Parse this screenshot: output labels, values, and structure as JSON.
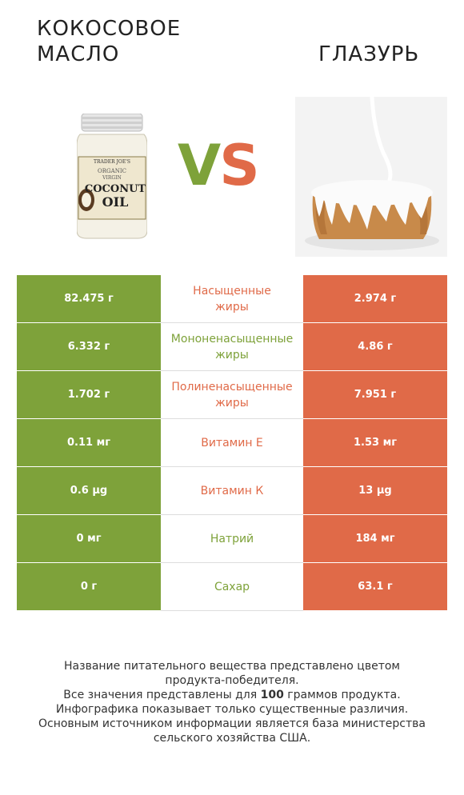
{
  "header": {
    "left_title": "КОКОСОВОЕ\nМАСЛО",
    "right_title": "ГЛАЗУРЬ",
    "vs_v": "V",
    "vs_s": "S"
  },
  "jar_label": {
    "brand": "TRADER JOE'S",
    "line1": "ORGANIC",
    "line2": "VIRGIN",
    "line3": "COCONUT",
    "line4": "OIL"
  },
  "colors": {
    "left_accent": "#7ea23a",
    "right_accent": "#e06a48"
  },
  "rows": [
    {
      "left": "82.475 г",
      "label": "Насыщенные\nжиры",
      "right": "2.974 г",
      "winner": "red"
    },
    {
      "left": "6.332 г",
      "label": "Мононенасыщенные\nжиры",
      "right": "4.86 г",
      "winner": "green"
    },
    {
      "left": "1.702 г",
      "label": "Полиненасыщенные\nжиры",
      "right": "7.951 г",
      "winner": "red"
    },
    {
      "left": "0.11 мг",
      "label": "Витамин E",
      "right": "1.53 мг",
      "winner": "red"
    },
    {
      "left": "0.6 µg",
      "label": "Витамин К",
      "right": "13 µg",
      "winner": "red"
    },
    {
      "left": "0 мг",
      "label": "Натрий",
      "right": "184 мг",
      "winner": "green"
    },
    {
      "left": "0 г",
      "label": "Сахар",
      "right": "63.1 г",
      "winner": "green"
    }
  ],
  "footer": {
    "line1": "Название питательного вещества представлено цветом",
    "line2": "продукта-победителя.",
    "line3_pre": "Все значения представлены для ",
    "line3_bold": "100",
    "line3_post": " граммов продукта.",
    "line4": "Инфографика показывает только существенные различия.",
    "line5": "Основным источником информации является база министерства",
    "line6": "сельского хозяйства США."
  }
}
